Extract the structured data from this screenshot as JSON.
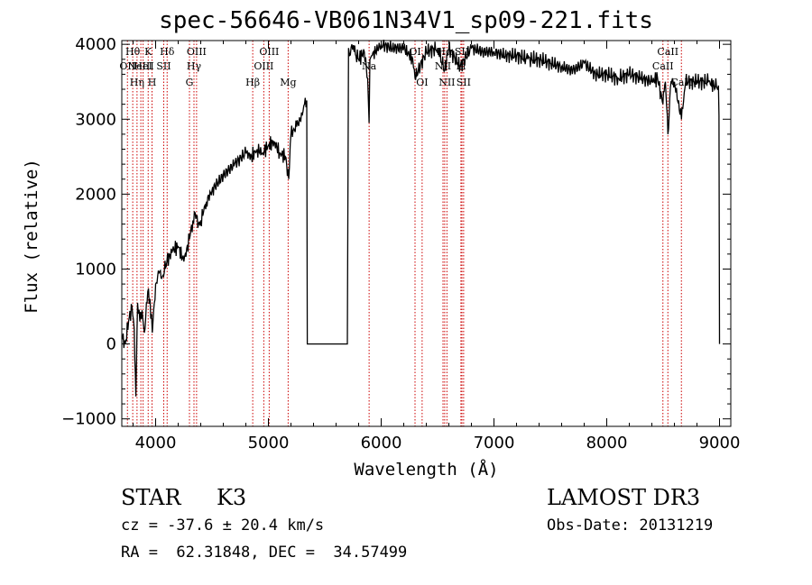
{
  "chart_data": {
    "type": "line",
    "title": "spec-56646-VB061N34V1_sp09-221.fits",
    "xlabel": "Wavelength (Å)",
    "ylabel": "Flux (relative)",
    "xlim": [
      3700,
      9100
    ],
    "ylim": [
      -1100,
      4050
    ],
    "xticks": [
      4000,
      5000,
      6000,
      7000,
      8000,
      9000
    ],
    "yticks": [
      -1000,
      0,
      1000,
      2000,
      3000,
      4000
    ],
    "grid": false,
    "line_color": "#000000",
    "marker_color": "#cc0000",
    "series": [
      {
        "name": "flux",
        "x": [
          3700,
          3730,
          3760,
          3790,
          3810,
          3825,
          3840,
          3860,
          3880,
          3900,
          3930,
          3950,
          3970,
          4000,
          4030,
          4060,
          4100,
          4150,
          4200,
          4250,
          4300,
          4330,
          4350,
          4380,
          4400,
          4450,
          4500,
          4600,
          4700,
          4800,
          4850,
          4900,
          4950,
          5000,
          5050,
          5100,
          5150,
          5180,
          5200,
          5250,
          5300,
          5320,
          5340,
          5345,
          5700,
          5705,
          5710,
          5720,
          5740,
          5760,
          5800,
          5850,
          5880,
          5893,
          5900,
          5920,
          6000,
          6100,
          6200,
          6280,
          6300,
          6400,
          6500,
          6563,
          6600,
          6700,
          6800,
          6900,
          7000,
          7100,
          7200,
          7300,
          7400,
          7500,
          7600,
          7700,
          7800,
          7900,
          8000,
          8100,
          8200,
          8300,
          8400,
          8450,
          8498,
          8520,
          8542,
          8570,
          8600,
          8662,
          8700,
          8800,
          8900,
          8950,
          8990,
          8995,
          9000
        ],
        "y": [
          100,
          0,
          300,
          500,
          200,
          -700,
          550,
          300,
          450,
          150,
          700,
          600,
          150,
          800,
          950,
          900,
          1100,
          1250,
          1300,
          1100,
          1400,
          1650,
          1750,
          1600,
          1650,
          1900,
          2050,
          2250,
          2400,
          2550,
          2500,
          2600,
          2550,
          2650,
          2700,
          2550,
          2500,
          2200,
          2800,
          2900,
          3050,
          3200,
          3250,
          0,
          0,
          1900,
          3950,
          3850,
          4000,
          3900,
          3800,
          3900,
          3550,
          2950,
          3800,
          3850,
          4000,
          3950,
          3950,
          3800,
          3550,
          3900,
          3950,
          3650,
          3950,
          3700,
          3950,
          3900,
          3900,
          3850,
          3850,
          3800,
          3800,
          3750,
          3700,
          3650,
          3750,
          3600,
          3600,
          3550,
          3600,
          3550,
          3500,
          3550,
          3200,
          3500,
          2800,
          3500,
          3500,
          3000,
          3500,
          3500,
          3500,
          3450,
          3450,
          3050,
          0
        ]
      }
    ],
    "line_markers": [
      {
        "wl": 3750,
        "label": "OII",
        "row": 2
      },
      {
        "wl": 3797,
        "label": "Hθ",
        "row": 1
      },
      {
        "wl": 3835,
        "label": "Hη",
        "row": 3
      },
      {
        "wl": 3869,
        "label": "NeIII",
        "row": 2
      },
      {
        "wl": 3889,
        "label": "HeI",
        "row": 2
      },
      {
        "wl": 3934,
        "label": "K",
        "row": 1
      },
      {
        "wl": 3968,
        "label": "H",
        "row": 3
      },
      {
        "wl": 4072,
        "label": "SII",
        "row": 2
      },
      {
        "wl": 4102,
        "label": "Hδ",
        "row": 1
      },
      {
        "wl": 4300,
        "label": "G",
        "row": 3
      },
      {
        "wl": 4340,
        "label": "Hγ",
        "row": 2
      },
      {
        "wl": 4363,
        "label": "OIII",
        "row": 1
      },
      {
        "wl": 4861,
        "label": "Hβ",
        "row": 3
      },
      {
        "wl": 4959,
        "label": "OIII",
        "row": 2
      },
      {
        "wl": 5007,
        "label": "OIII",
        "row": 1
      },
      {
        "wl": 5175,
        "label": "Mg",
        "row": 3
      },
      {
        "wl": 5893,
        "label": "Na",
        "row": 2
      },
      {
        "wl": 6300,
        "label": "OI",
        "row": 1
      },
      {
        "wl": 6363,
        "label": "OI",
        "row": 3
      },
      {
        "wl": 6548,
        "label": "NII",
        "row": 2
      },
      {
        "wl": 6563,
        "label": "Hα",
        "row": 1
      },
      {
        "wl": 6583,
        "label": "NII",
        "row": 3
      },
      {
        "wl": 6707,
        "label": "Li",
        "row": 2
      },
      {
        "wl": 6716,
        "label": "SII",
        "row": 1
      },
      {
        "wl": 6731,
        "label": "SII",
        "row": 3
      },
      {
        "wl": 8498,
        "label": "CaII",
        "row": 2
      },
      {
        "wl": 8542,
        "label": "CaII",
        "row": 1
      },
      {
        "wl": 8662,
        "label": "CaII",
        "row": 3
      }
    ]
  },
  "info": {
    "object_class": "STAR",
    "subclass": "K3",
    "survey": "LAMOST DR3",
    "redshift": "cz = -37.6 ± 20.4 km/s",
    "obs_date": "Obs-Date: 20131219",
    "coords": "RA =  62.31848, DEC =  34.57499"
  }
}
